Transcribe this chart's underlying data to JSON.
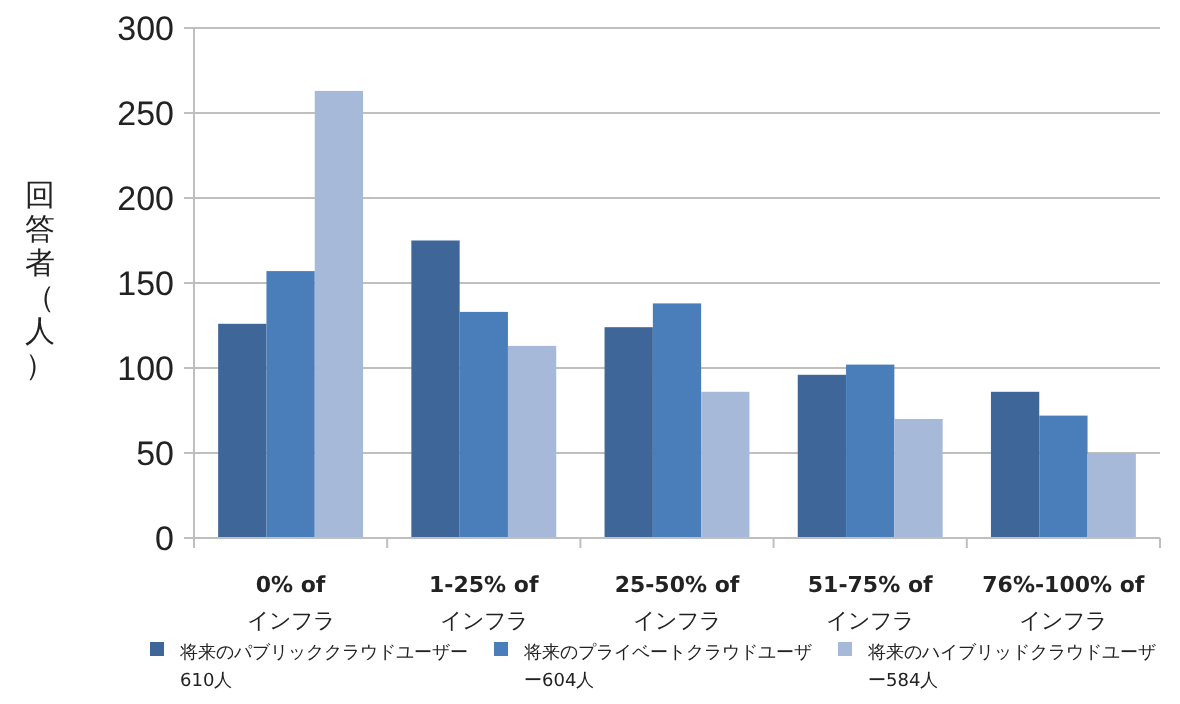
{
  "chart_data": {
    "type": "bar",
    "ylabel": "回答者（人）",
    "categories": [
      "0% of\nインフラ",
      "1-25% of\nインフラ",
      "25-50% of\nインフラ",
      "51-75% of\nインフラ",
      "76%-100% of\nインフラ"
    ],
    "series": [
      {
        "name": "将来のパブリッククラウドユーザー610人",
        "color": "#3f6699",
        "values": [
          126,
          175,
          124,
          96,
          86
        ]
      },
      {
        "name": "将来のプライベートクラウドユーザー604人",
        "color": "#4a7ebb",
        "values": [
          157,
          133,
          138,
          102,
          72
        ]
      },
      {
        "name": "将来のハイブリッドクラウドユーザー584人",
        "color": "#a7b9d9",
        "values": [
          263,
          113,
          86,
          70,
          50
        ]
      }
    ],
    "ylim": [
      0,
      300
    ],
    "yticks": [
      0,
      50,
      100,
      150,
      200,
      250,
      300
    ],
    "grid": "y",
    "legend": "bottom"
  }
}
